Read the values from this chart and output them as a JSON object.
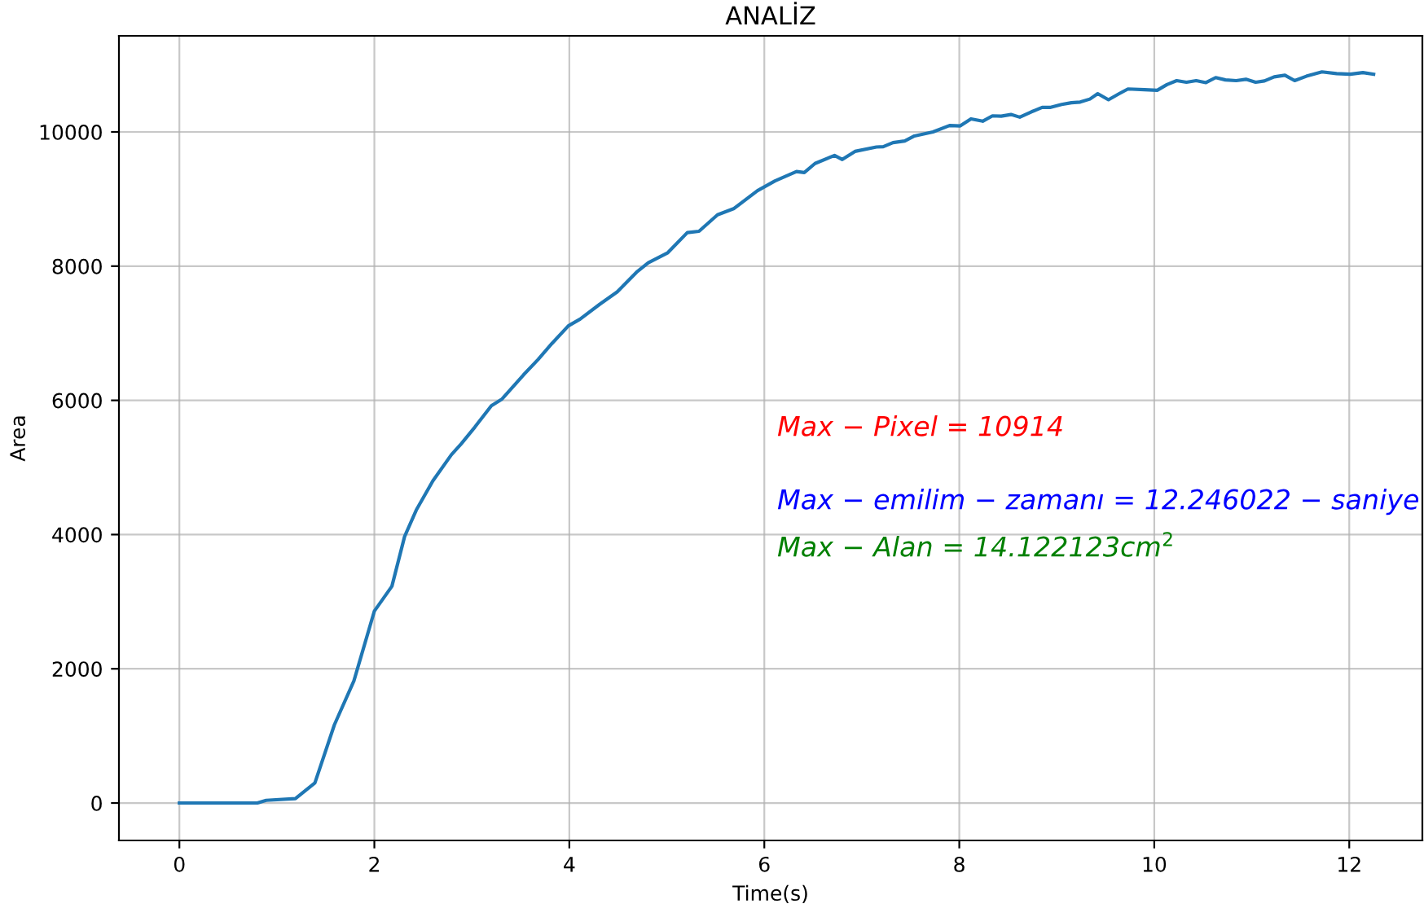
{
  "chart_data": {
    "type": "line",
    "title": "ANALİZ",
    "xlabel": "Time(s)",
    "ylabel": "Area",
    "x": [
      0,
      0.8,
      0.89,
      1.19,
      1.39,
      1.59,
      1.79,
      2.0,
      2.18,
      2.31,
      2.43,
      2.6,
      2.79,
      2.89,
      3.03,
      3.2,
      3.31,
      3.53,
      3.68,
      3.82,
      3.99,
      4.11,
      4.31,
      4.49,
      4.69,
      4.81,
      5.01,
      5.21,
      5.33,
      5.52,
      5.69,
      5.93,
      6.11,
      6.33,
      6.41,
      6.52,
      6.72,
      6.8,
      6.93,
      7.15,
      7.22,
      7.32,
      7.44,
      7.54,
      7.73,
      7.9,
      8.01,
      8.12,
      8.24,
      8.34,
      8.43,
      8.53,
      8.62,
      8.74,
      8.85,
      8.93,
      9.05,
      9.15,
      9.24,
      9.34,
      9.42,
      9.53,
      9.64,
      9.73,
      9.9,
      10.03,
      10.13,
      10.23,
      10.33,
      10.43,
      10.53,
      10.63,
      10.73,
      10.84,
      10.94,
      11.04,
      11.13,
      11.23,
      11.34,
      11.44,
      11.56,
      11.72,
      11.87,
      12.01,
      12.14,
      12.25
    ],
    "series": [
      {
        "color": "#1f77b4",
        "values": [
          0,
          0,
          40,
          65,
          300,
          1165,
          1820,
          2860,
          3230,
          3970,
          4365,
          4800,
          5190,
          5350,
          5600,
          5920,
          6020,
          6380,
          6610,
          6845,
          7110,
          7210,
          7430,
          7615,
          7910,
          8050,
          8200,
          8500,
          8520,
          8765,
          8860,
          9125,
          9270,
          9410,
          9395,
          9530,
          9650,
          9590,
          9710,
          9775,
          9780,
          9840,
          9865,
          9940,
          10000,
          10095,
          10090,
          10195,
          10160,
          10240,
          10235,
          10260,
          10220,
          10300,
          10365,
          10365,
          10410,
          10435,
          10445,
          10490,
          10570,
          10480,
          10570,
          10640,
          10630,
          10620,
          10705,
          10765,
          10740,
          10765,
          10735,
          10810,
          10775,
          10765,
          10785,
          10740,
          10760,
          10820,
          10845,
          10765,
          10830,
          10895,
          10870,
          10860,
          10885,
          10860
        ]
      }
    ],
    "xlim": [
      -0.62,
      12.75
    ],
    "ylim": [
      -558,
      11432
    ],
    "xticks": [
      0,
      2,
      4,
      6,
      8,
      10,
      12
    ],
    "yticks": [
      0,
      2000,
      4000,
      6000,
      8000,
      10000
    ],
    "grid": true,
    "annotations": [
      "Max − Pixel = 10914",
      "Max − emilim − zamanı = 12.246022 − saniye",
      "Max − Alan = 14.122123cm$^{2}$"
    ]
  }
}
